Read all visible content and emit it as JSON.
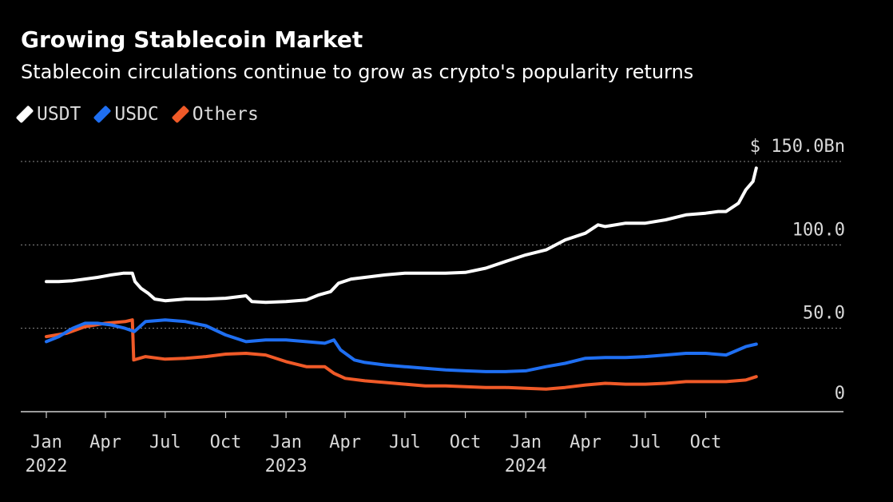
{
  "chart_data": {
    "type": "line",
    "title": "Growing Stablecoin Market",
    "subtitle": "Stablecoin circulations continue to grow as crypto's popularity returns",
    "ylabel": "",
    "xlabel": "",
    "ylim": [
      0,
      150
    ],
    "y_ticks": [
      {
        "value": 0,
        "label": "0"
      },
      {
        "value": 50,
        "label": "50.0"
      },
      {
        "value": 100,
        "label": "100.0"
      },
      {
        "value": 150,
        "label": "$ 150.0Bn"
      }
    ],
    "x_ticks": [
      {
        "date": "2022-01",
        "label": "Jan",
        "year": "2022"
      },
      {
        "date": "2022-04",
        "label": "Apr",
        "year": ""
      },
      {
        "date": "2022-07",
        "label": "Jul",
        "year": ""
      },
      {
        "date": "2022-10",
        "label": "Oct",
        "year": ""
      },
      {
        "date": "2023-01",
        "label": "Jan",
        "year": "2023"
      },
      {
        "date": "2023-04",
        "label": "Apr",
        "year": ""
      },
      {
        "date": "2023-07",
        "label": "Jul",
        "year": ""
      },
      {
        "date": "2023-10",
        "label": "Oct",
        "year": ""
      },
      {
        "date": "2024-01",
        "label": "Jan",
        "year": "2024"
      },
      {
        "date": "2024-04",
        "label": "Apr",
        "year": ""
      },
      {
        "date": "2024-07",
        "label": "Jul",
        "year": ""
      },
      {
        "date": "2024-10",
        "label": "Oct",
        "year": ""
      }
    ],
    "grid": "dotted horizontal",
    "legend_position": "top-left",
    "series": [
      {
        "name": "USDT",
        "color": "#ffffff",
        "points": [
          [
            "2022-01-01",
            78
          ],
          [
            "2022-01-20",
            78
          ],
          [
            "2022-02-10",
            78.5
          ],
          [
            "2022-03-01",
            79.5
          ],
          [
            "2022-03-20",
            80.5
          ],
          [
            "2022-04-10",
            82
          ],
          [
            "2022-04-28",
            83
          ],
          [
            "2022-05-12",
            83
          ],
          [
            "2022-05-16",
            78
          ],
          [
            "2022-05-25",
            74
          ],
          [
            "2022-06-05",
            71
          ],
          [
            "2022-06-15",
            67.5
          ],
          [
            "2022-07-01",
            66.5
          ],
          [
            "2022-08-01",
            67.5
          ],
          [
            "2022-09-01",
            67.5
          ],
          [
            "2022-10-01",
            68
          ],
          [
            "2022-11-01",
            69.5
          ],
          [
            "2022-11-10",
            66
          ],
          [
            "2022-12-01",
            65.5
          ],
          [
            "2023-01-01",
            66
          ],
          [
            "2023-02-01",
            67
          ],
          [
            "2023-02-20",
            70
          ],
          [
            "2023-03-10",
            72
          ],
          [
            "2023-03-22",
            77
          ],
          [
            "2023-04-10",
            79.5
          ],
          [
            "2023-05-01",
            80.5
          ],
          [
            "2023-06-01",
            82
          ],
          [
            "2023-07-01",
            83
          ],
          [
            "2023-08-01",
            83
          ],
          [
            "2023-09-01",
            83
          ],
          [
            "2023-10-01",
            83.5
          ],
          [
            "2023-11-01",
            86
          ],
          [
            "2023-12-01",
            90
          ],
          [
            "2024-01-01",
            94
          ],
          [
            "2024-02-01",
            97
          ],
          [
            "2024-03-01",
            103
          ],
          [
            "2024-04-01",
            107
          ],
          [
            "2024-04-20",
            112
          ],
          [
            "2024-05-01",
            111
          ],
          [
            "2024-06-01",
            113
          ],
          [
            "2024-07-01",
            113
          ],
          [
            "2024-08-01",
            115
          ],
          [
            "2024-09-01",
            118
          ],
          [
            "2024-10-01",
            119
          ],
          [
            "2024-10-20",
            120
          ],
          [
            "2024-11-01",
            120
          ],
          [
            "2024-11-20",
            125
          ],
          [
            "2024-12-01",
            133
          ],
          [
            "2024-12-12",
            138
          ],
          [
            "2024-12-17",
            146
          ]
        ]
      },
      {
        "name": "USDC",
        "color": "#1f6ff2",
        "points": [
          [
            "2022-01-01",
            42
          ],
          [
            "2022-01-20",
            45
          ],
          [
            "2022-02-10",
            50
          ],
          [
            "2022-03-01",
            53
          ],
          [
            "2022-03-20",
            53
          ],
          [
            "2022-04-10",
            52
          ],
          [
            "2022-05-01",
            50
          ],
          [
            "2022-05-15",
            48
          ],
          [
            "2022-06-01",
            54
          ],
          [
            "2022-07-01",
            55
          ],
          [
            "2022-08-01",
            54
          ],
          [
            "2022-09-01",
            51.5
          ],
          [
            "2022-10-01",
            46
          ],
          [
            "2022-11-01",
            42
          ],
          [
            "2022-12-01",
            43
          ],
          [
            "2023-01-01",
            43
          ],
          [
            "2023-02-01",
            42
          ],
          [
            "2023-03-01",
            41
          ],
          [
            "2023-03-15",
            43
          ],
          [
            "2023-03-25",
            37
          ],
          [
            "2023-04-15",
            31
          ],
          [
            "2023-05-01",
            29.5
          ],
          [
            "2023-06-01",
            28
          ],
          [
            "2023-07-01",
            27
          ],
          [
            "2023-08-01",
            26
          ],
          [
            "2023-09-01",
            25
          ],
          [
            "2023-10-01",
            24.5
          ],
          [
            "2023-11-01",
            24
          ],
          [
            "2023-12-01",
            24
          ],
          [
            "2024-01-01",
            24.5
          ],
          [
            "2024-02-01",
            27
          ],
          [
            "2024-03-01",
            29
          ],
          [
            "2024-04-01",
            32
          ],
          [
            "2024-05-01",
            32.5
          ],
          [
            "2024-06-01",
            32.5
          ],
          [
            "2024-07-01",
            33
          ],
          [
            "2024-08-01",
            34
          ],
          [
            "2024-09-01",
            35
          ],
          [
            "2024-10-01",
            35
          ],
          [
            "2024-11-01",
            34
          ],
          [
            "2024-12-01",
            39
          ],
          [
            "2024-12-17",
            40.5
          ]
        ]
      },
      {
        "name": "Others",
        "color": "#f05a28",
        "points": [
          [
            "2022-01-01",
            45
          ],
          [
            "2022-02-01",
            47
          ],
          [
            "2022-03-01",
            51
          ],
          [
            "2022-04-01",
            53
          ],
          [
            "2022-05-01",
            54
          ],
          [
            "2022-05-12",
            55
          ],
          [
            "2022-05-14",
            31
          ],
          [
            "2022-06-01",
            33
          ],
          [
            "2022-07-01",
            31.5
          ],
          [
            "2022-08-01",
            32
          ],
          [
            "2022-09-01",
            33
          ],
          [
            "2022-10-01",
            34.5
          ],
          [
            "2022-11-01",
            35
          ],
          [
            "2022-12-01",
            34
          ],
          [
            "2023-01-01",
            30
          ],
          [
            "2023-02-01",
            27
          ],
          [
            "2023-03-01",
            27
          ],
          [
            "2023-03-15",
            23
          ],
          [
            "2023-04-01",
            20
          ],
          [
            "2023-05-01",
            18.5
          ],
          [
            "2023-06-01",
            17.5
          ],
          [
            "2023-07-01",
            16.5
          ],
          [
            "2023-08-01",
            15.5
          ],
          [
            "2023-09-01",
            15.5
          ],
          [
            "2023-10-01",
            15
          ],
          [
            "2023-11-01",
            14.5
          ],
          [
            "2023-12-01",
            14.5
          ],
          [
            "2024-01-01",
            14
          ],
          [
            "2024-02-01",
            13.5
          ],
          [
            "2024-03-01",
            14.5
          ],
          [
            "2024-04-01",
            16
          ],
          [
            "2024-05-01",
            17
          ],
          [
            "2024-06-01",
            16.5
          ],
          [
            "2024-07-01",
            16.5
          ],
          [
            "2024-08-01",
            17
          ],
          [
            "2024-09-01",
            18
          ],
          [
            "2024-10-01",
            18
          ],
          [
            "2024-11-01",
            18
          ],
          [
            "2024-12-01",
            19
          ],
          [
            "2024-12-17",
            21
          ]
        ]
      }
    ]
  }
}
